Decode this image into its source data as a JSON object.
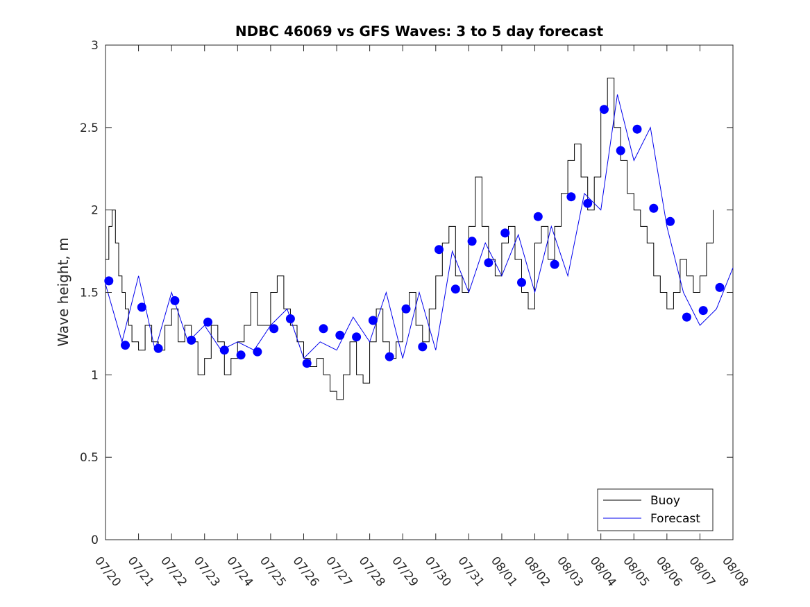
{
  "chart_data": {
    "type": "line",
    "title": "NDBC 46069 vs GFS Waves: 3 to 5 day forecast",
    "xlabel": "",
    "ylabel": "Wave height, m",
    "x_ticks": [
      "07/20",
      "07/21",
      "07/22",
      "07/23",
      "07/24",
      "07/25",
      "07/26",
      "07/27",
      "07/28",
      "07/29",
      "07/30",
      "07/31",
      "08/01",
      "08/02",
      "08/03",
      "08/04",
      "08/05",
      "08/06",
      "08/07",
      "08/08"
    ],
    "xlim_days": [
      0,
      19
    ],
    "y_ticks": [
      "0",
      "0.5",
      "1",
      "1.5",
      "2",
      "2.5",
      "3"
    ],
    "ylim": [
      0,
      3
    ],
    "grid": false,
    "legend_position": "bottom-right",
    "colors": {
      "buoy": "#000000",
      "forecast": "#0000ee",
      "points": "#0000ff"
    },
    "series": [
      {
        "name": "Buoy",
        "x": [
          0,
          0.1,
          0.2,
          0.3,
          0.4,
          0.5,
          0.6,
          0.7,
          0.8,
          1.0,
          1.2,
          1.4,
          1.6,
          1.8,
          2.0,
          2.2,
          2.4,
          2.6,
          2.8,
          3.0,
          3.2,
          3.4,
          3.6,
          3.8,
          4.0,
          4.2,
          4.4,
          4.6,
          4.8,
          5.0,
          5.2,
          5.4,
          5.6,
          5.8,
          6.0,
          6.2,
          6.4,
          6.6,
          6.8,
          7.0,
          7.2,
          7.4,
          7.6,
          7.8,
          8.0,
          8.2,
          8.4,
          8.6,
          8.8,
          9.0,
          9.2,
          9.4,
          9.6,
          9.8,
          10.0,
          10.2,
          10.4,
          10.6,
          10.8,
          11.0,
          11.2,
          11.4,
          11.6,
          11.8,
          12.0,
          12.2,
          12.4,
          12.6,
          12.8,
          13.0,
          13.2,
          13.4,
          13.6,
          13.8,
          14.0,
          14.2,
          14.4,
          14.6,
          14.8,
          15.0,
          15.2,
          15.4,
          15.6,
          15.8,
          16.0,
          16.2,
          16.4,
          16.6,
          16.8,
          17.0,
          17.2,
          17.4,
          17.6,
          17.8,
          18.0,
          18.2,
          18.4
        ],
        "values": [
          1.7,
          1.9,
          2.0,
          1.8,
          1.6,
          1.5,
          1.4,
          1.3,
          1.2,
          1.15,
          1.3,
          1.2,
          1.15,
          1.3,
          1.4,
          1.2,
          1.3,
          1.2,
          1.0,
          1.1,
          1.3,
          1.2,
          1.0,
          1.1,
          1.2,
          1.3,
          1.5,
          1.3,
          1.3,
          1.5,
          1.6,
          1.4,
          1.3,
          1.2,
          1.1,
          1.05,
          1.1,
          1.0,
          0.9,
          0.85,
          1.0,
          1.2,
          1.0,
          0.95,
          1.2,
          1.4,
          1.2,
          1.1,
          1.2,
          1.4,
          1.5,
          1.3,
          1.2,
          1.4,
          1.6,
          1.8,
          1.9,
          1.6,
          1.5,
          1.9,
          2.2,
          1.9,
          1.7,
          1.6,
          1.8,
          1.9,
          1.7,
          1.5,
          1.4,
          1.8,
          1.9,
          1.7,
          1.9,
          2.1,
          2.3,
          2.4,
          2.2,
          2.0,
          2.2,
          2.6,
          2.8,
          2.5,
          2.3,
          2.1,
          2.0,
          1.9,
          1.8,
          1.6,
          1.5,
          1.4,
          1.5,
          1.7,
          1.6,
          1.5,
          1.6,
          1.8,
          2.0
        ]
      },
      {
        "name": "Forecast",
        "x": [
          0,
          0.5,
          1.0,
          1.5,
          2.0,
          2.5,
          3.0,
          3.5,
          4.0,
          4.5,
          5.0,
          5.5,
          6.0,
          6.5,
          7.0,
          7.5,
          8.0,
          8.5,
          9.0,
          9.5,
          10.0,
          10.5,
          11.0,
          11.5,
          12.0,
          12.5,
          13.0,
          13.5,
          14.0,
          14.5,
          15.0,
          15.5,
          16.0,
          16.5,
          17.0,
          17.5,
          18.0,
          18.5,
          19.0
        ],
        "values": [
          1.55,
          1.2,
          1.6,
          1.15,
          1.5,
          1.2,
          1.3,
          1.15,
          1.2,
          1.15,
          1.3,
          1.4,
          1.1,
          1.2,
          1.15,
          1.35,
          1.2,
          1.5,
          1.1,
          1.5,
          1.15,
          1.75,
          1.5,
          1.8,
          1.6,
          1.85,
          1.5,
          1.9,
          1.6,
          2.1,
          2.0,
          2.7,
          2.3,
          2.5,
          1.9,
          1.5,
          1.3,
          1.4,
          1.65
        ]
      }
    ],
    "forecast_points": {
      "x": [
        0.1,
        0.6,
        1.1,
        1.6,
        2.1,
        2.6,
        3.1,
        3.6,
        4.1,
        4.6,
        5.1,
        5.6,
        6.1,
        6.6,
        7.1,
        7.6,
        8.1,
        8.6,
        9.1,
        9.6,
        10.1,
        10.6,
        11.1,
        11.6,
        12.1,
        12.6,
        13.1,
        13.6,
        14.1,
        14.6,
        15.1,
        15.6,
        16.1,
        16.6,
        17.1,
        17.6,
        18.1,
        18.6
      ],
      "values": [
        1.57,
        1.18,
        1.41,
        1.16,
        1.45,
        1.21,
        1.32,
        1.15,
        1.12,
        1.14,
        1.28,
        1.34,
        1.07,
        1.28,
        1.24,
        1.23,
        1.33,
        1.11,
        1.4,
        1.17,
        1.76,
        1.52,
        1.81,
        1.68,
        1.86,
        1.56,
        1.96,
        1.67,
        2.08,
        2.04,
        2.61,
        2.36,
        2.49,
        2.01,
        1.93,
        1.35,
        1.39,
        1.53
      ]
    }
  }
}
